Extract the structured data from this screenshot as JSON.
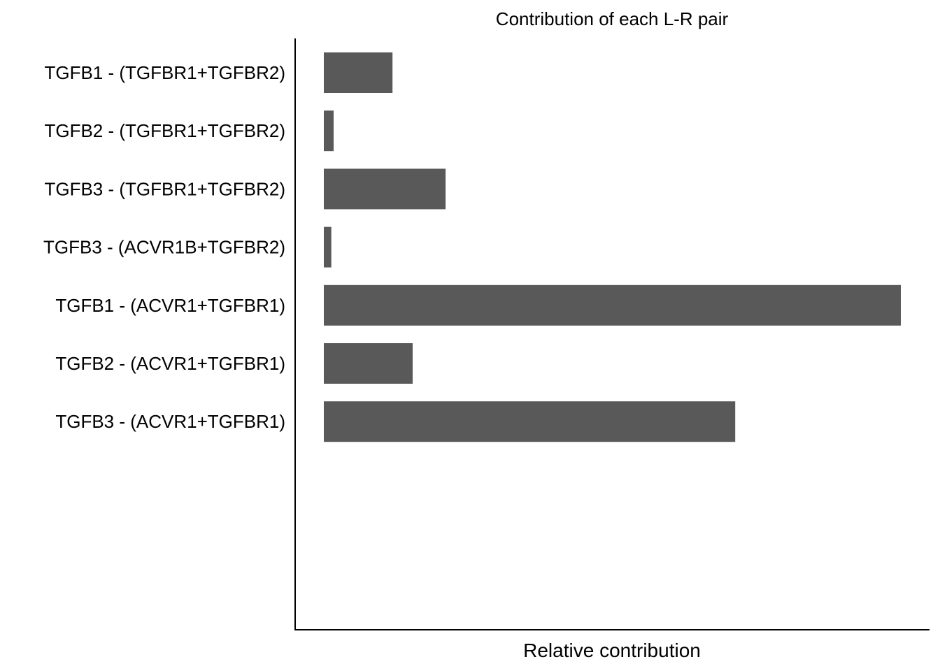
{
  "chart_data": {
    "type": "bar",
    "orientation": "horizontal",
    "title": "Contribution of each L-R pair",
    "xlabel": "Relative contribution",
    "ylabel": "",
    "categories": [
      "TGFB1 - (TGFBR1+TGFBR2)",
      "TGFB2 - (TGFBR1+TGFBR2)",
      "TGFB3 - (TGFBR1+TGFBR2)",
      "TGFB3 - (ACVR1B+TGFBR2)",
      "TGFB1 - (ACVR1+TGFBR1)",
      "TGFB2 - (ACVR1+TGFBR1)",
      "TGFB3 - (ACVR1+TGFBR1)"
    ],
    "values": [
      0.119,
      0.017,
      0.211,
      0.013,
      1.0,
      0.154,
      0.713
    ],
    "xlim": [
      0,
      1.0
    ],
    "grid": false,
    "legend": "none",
    "bar_color": "#595959"
  }
}
